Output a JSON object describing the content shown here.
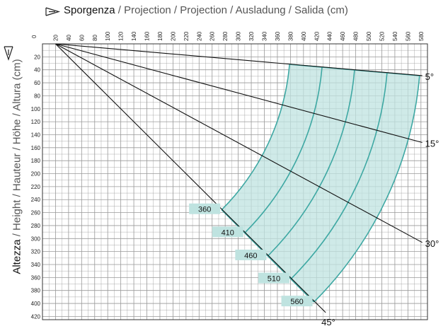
{
  "chart_data": {
    "type": "line",
    "title_parts": [
      "Sporgenza",
      " / Projection / Projection / Ausladung / Salida (cm)"
    ],
    "ylabel_parts": [
      "Altezza",
      " / Height / Hauteur / Höhe / Altura  (cm)"
    ],
    "origin_label": "0",
    "x_ticks": [
      20,
      40,
      60,
      80,
      100,
      120,
      140,
      160,
      180,
      200,
      220,
      240,
      260,
      280,
      300,
      320,
      340,
      360,
      380,
      400,
      420,
      440,
      460,
      480,
      500,
      520,
      540,
      560,
      580
    ],
    "y_ticks": [
      20,
      40,
      60,
      80,
      100,
      120,
      140,
      160,
      180,
      200,
      220,
      240,
      260,
      280,
      300,
      320,
      340,
      360,
      380,
      400,
      420
    ],
    "xlim": [
      0,
      590
    ],
    "ylim": [
      0,
      425
    ],
    "grid": true,
    "pivot": [
      20,
      0
    ],
    "series": [
      {
        "name": "5°",
        "x": [
          20,
          582
        ],
        "y": [
          0,
          49
        ]
      },
      {
        "name": "15°",
        "x": [
          20,
          582
        ],
        "y": [
          0,
          152
        ]
      },
      {
        "name": "30°",
        "x": [
          20,
          582
        ],
        "y": [
          0,
          306
        ]
      },
      {
        "name": "45°",
        "x": [
          20,
          434
        ],
        "y": [
          0,
          414
        ]
      }
    ],
    "arm_lengths": [
      {
        "label": "360",
        "value": 360
      },
      {
        "label": "410",
        "value": 410
      },
      {
        "label": "460",
        "value": 460
      },
      {
        "label": "510",
        "value": 510
      },
      {
        "label": "560",
        "value": 560
      }
    ],
    "shaded_range": {
      "from_angle": 5,
      "to_angle": 45
    },
    "colors": {
      "shade": "#bfe3e0",
      "shade_edge": "#3ea8a3",
      "label_box": "#bfe3e0",
      "grid": "#999999"
    }
  }
}
